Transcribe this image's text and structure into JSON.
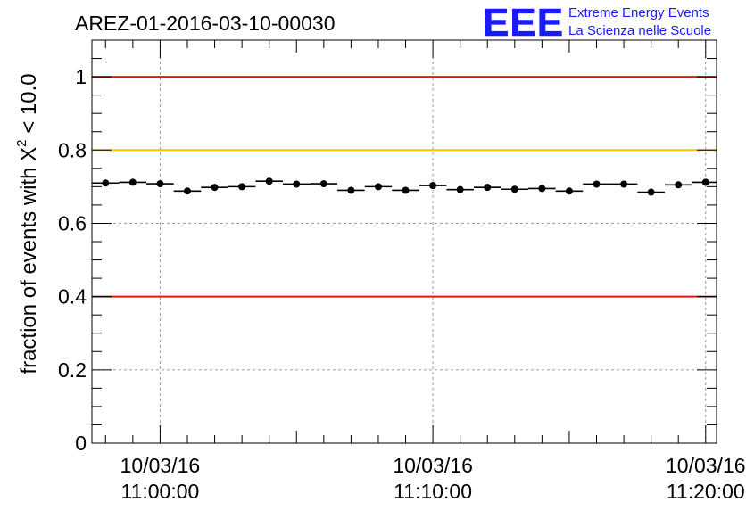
{
  "colors": {
    "axis": "#000000",
    "grid": "#9a9a9a",
    "red_line": "#e8140c",
    "yellow_line": "#ffc000",
    "marker": "#000000",
    "logo": "#1a1aff"
  },
  "header": {
    "title": "AREZ-01-2016-03-10-00030"
  },
  "logo": {
    "letters": "EEE",
    "line1": "Extreme Energy Events",
    "line2": "La Scienza nelle Scuole"
  },
  "chart_data": {
    "type": "scatter",
    "title": "AREZ-01-2016-03-10-00030",
    "ylabel_prefix": "fraction of events with ",
    "ylabel_symbol": "Χ",
    "ylabel_superscript": "2",
    "ylabel_suffix": " < 10.0",
    "xlabel": "",
    "ylim": [
      0,
      1.1
    ],
    "xlim_minutes": [
      -2.5,
      20.4
    ],
    "y_ticks": [
      {
        "value": 0,
        "label": "0"
      },
      {
        "value": 0.2,
        "label": "0.2"
      },
      {
        "value": 0.4,
        "label": "0.4"
      },
      {
        "value": 0.6,
        "label": "0.6"
      },
      {
        "value": 0.8,
        "label": "0.8"
      },
      {
        "value": 1,
        "label": "1"
      }
    ],
    "x_ticks": [
      {
        "minute": 0,
        "date": "10/03/16",
        "time": "11:00:00"
      },
      {
        "minute": 10,
        "date": "10/03/16",
        "time": "11:10:00"
      },
      {
        "minute": 20,
        "date": "10/03/16",
        "time": "11:20:00"
      }
    ],
    "grid": true,
    "reference_lines": [
      {
        "value": 1.0,
        "color": "red"
      },
      {
        "value": 0.8,
        "color": "yellow"
      },
      {
        "value": 0.4,
        "color": "red"
      }
    ],
    "bin_width_minutes": 1,
    "x_minutes": [
      -2.0,
      -1.0,
      0.0,
      1.0,
      2.0,
      3.0,
      4.0,
      5.0,
      6.0,
      7.0,
      8.0,
      9.0,
      10.0,
      11.0,
      12.0,
      13.0,
      14.0,
      15.0,
      16.0,
      17.0,
      18.0,
      19.0,
      20.0
    ],
    "values": [
      0.71,
      0.712,
      0.708,
      0.688,
      0.698,
      0.7,
      0.715,
      0.707,
      0.708,
      0.69,
      0.7,
      0.69,
      0.703,
      0.692,
      0.698,
      0.693,
      0.695,
      0.688,
      0.707,
      0.707,
      0.685,
      0.705,
      0.712
    ]
  }
}
